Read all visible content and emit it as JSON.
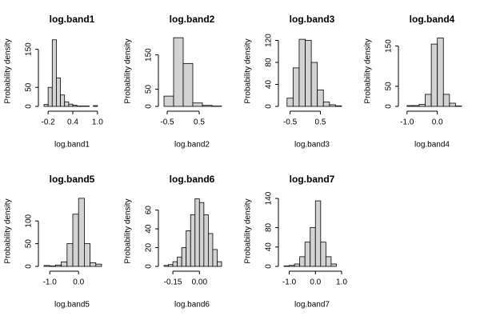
{
  "chart_data": [
    {
      "type": "histogram",
      "title": "log.band1",
      "xlabel": "log.band1",
      "ylabel": "Probability density",
      "bins": [
        -0.3,
        -0.2,
        -0.1,
        0,
        0.1,
        0.2,
        0.3,
        0.4,
        0.5,
        0.6,
        0.7,
        0.8,
        0.9,
        1.0,
        1.1
      ],
      "values": [
        5,
        50,
        175,
        75,
        30,
        12,
        6,
        3,
        1,
        1,
        1,
        0,
        2,
        0
      ],
      "xlim": [
        -0.3,
        1.1
      ],
      "xticks": [
        -0.2,
        0.4,
        {
          "value": 1,
          "label": "1.0"
        }
      ],
      "ylim": [
        0,
        185
      ],
      "yticks": [
        0,
        50,
        150
      ],
      "color": "#d3d3d3"
    },
    {
      "type": "histogram",
      "title": "log.band2",
      "xlabel": "log.band2",
      "ylabel": "Probability density",
      "bins": [
        -0.6,
        -0.3,
        0,
        0.3,
        0.6,
        0.9,
        1.2
      ],
      "values": [
        30,
        200,
        125,
        10,
        3,
        1
      ],
      "xlim": [
        -0.6,
        1.2
      ],
      "xticks": [
        -0.5,
        0.5
      ],
      "ylim": [
        0,
        205
      ],
      "yticks": [
        0,
        50,
        150
      ],
      "color": "#d3d3d3"
    },
    {
      "type": "histogram",
      "title": "log.band3",
      "xlabel": "log.band3",
      "ylabel": "Probability density",
      "bins": [
        -0.6,
        -0.4,
        -0.2,
        0,
        0.2,
        0.4,
        0.6,
        0.8,
        1.0,
        1.2
      ],
      "values": [
        15,
        70,
        122,
        120,
        80,
        30,
        8,
        3,
        1
      ],
      "xlim": [
        -0.7,
        1.2
      ],
      "xticks": [
        -0.5,
        0.5
      ],
      "ylim": [
        0,
        128
      ],
      "yticks": [
        0,
        40,
        80,
        120
      ],
      "color": "#d3d3d3"
    },
    {
      "type": "histogram",
      "title": "log.band4",
      "xlabel": "log.band4",
      "ylabel": "Probability density",
      "bins": [
        -1.0,
        -0.8,
        -0.6,
        -0.4,
        -0.2,
        0,
        0.2,
        0.4,
        0.6,
        0.8
      ],
      "values": [
        2,
        2,
        5,
        30,
        155,
        170,
        30,
        8,
        1
      ],
      "xlim": [
        -1.1,
        0.8
      ],
      "xticks": [
        {
          "value": -1,
          "label": "-1.0"
        },
        {
          "value": 0,
          "label": "0.0"
        }
      ],
      "ylim": [
        0,
        175
      ],
      "yticks": [
        0,
        50,
        150
      ],
      "color": "#d3d3d3"
    },
    {
      "type": "histogram",
      "title": "log.band5",
      "xlabel": "log.band5",
      "ylabel": "Probability density",
      "bins": [
        -1.2,
        -1.0,
        -0.8,
        -0.6,
        -0.4,
        -0.2,
        0,
        0.2,
        0.4,
        0.6,
        0.8
      ],
      "values": [
        2,
        1,
        3,
        10,
        50,
        115,
        150,
        50,
        8,
        5
      ],
      "xlim": [
        -1.2,
        0.8
      ],
      "xticks": [
        {
          "value": -1,
          "label": "-1.0"
        },
        {
          "value": 0,
          "label": "0.0"
        }
      ],
      "ylim": [
        0,
        155
      ],
      "yticks": [
        0,
        50,
        100
      ],
      "color": "#d3d3d3"
    },
    {
      "type": "histogram",
      "title": "log.band6",
      "xlabel": "log.band6",
      "ylabel": "Probability density",
      "bins": [
        -0.2,
        -0.175,
        -0.15,
        -0.125,
        -0.1,
        -0.075,
        -0.05,
        -0.025,
        0,
        0.025,
        0.05,
        0.075,
        0.1,
        0.125
      ],
      "values": [
        1,
        2,
        5,
        10,
        20,
        38,
        55,
        72,
        68,
        55,
        35,
        18,
        5
      ],
      "xlim": [
        -0.2,
        0.125
      ],
      "xticks": [
        -0.15,
        {
          "value": 0,
          "label": "0.00"
        }
      ],
      "ylim": [
        0,
        75
      ],
      "yticks": [
        0,
        20,
        40,
        60
      ],
      "color": "#d3d3d3"
    },
    {
      "type": "histogram",
      "title": "log.band7",
      "xlabel": "log.band7",
      "ylabel": "Probability density",
      "bins": [
        -1.2,
        -1.0,
        -0.8,
        -0.6,
        -0.4,
        -0.2,
        0,
        0.2,
        0.4,
        0.6,
        0.8
      ],
      "values": [
        1,
        2,
        5,
        20,
        50,
        80,
        135,
        50,
        20,
        5
      ],
      "xlim": [
        -1.2,
        1.0
      ],
      "xticks": [
        {
          "value": -1,
          "label": "-1.0"
        },
        {
          "value": 0,
          "label": "0.0"
        },
        {
          "value": 1,
          "label": "1.0"
        }
      ],
      "ylim": [
        0,
        145
      ],
      "yticks": [
        0,
        40,
        80,
        140
      ],
      "color": "#d3d3d3"
    }
  ]
}
